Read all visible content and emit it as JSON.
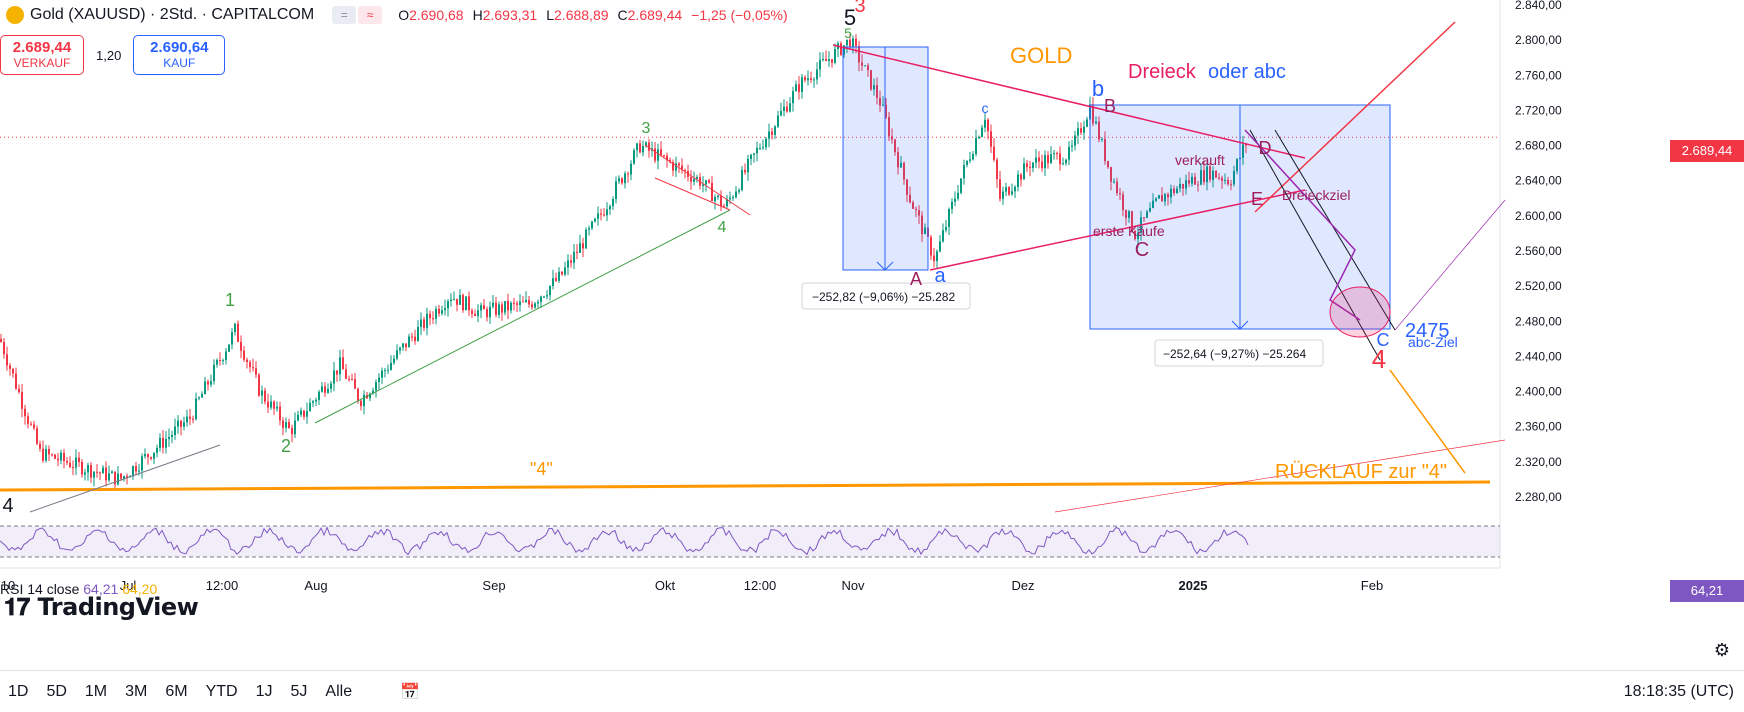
{
  "header": {
    "symbol": "Gold (XAUUSD) · 2Std. · CAPITALCOM",
    "chip1": "=",
    "chip2": "≈",
    "ohlc": [
      {
        "k": "O",
        "v": "2.690,68"
      },
      {
        "k": "H",
        "v": "2.693,31"
      },
      {
        "k": "L",
        "v": "2.688,89"
      },
      {
        "k": "C",
        "v": "2.689,44"
      },
      {
        "k": "",
        "v": "−1,25 (−0,05%)"
      }
    ]
  },
  "trade": {
    "sell_price": "2.689,44",
    "sell_label": "VERKAUF",
    "spread": "1,20",
    "buy_price": "2.690,64",
    "buy_label": "KAUF"
  },
  "colors": {
    "up": "#089981",
    "down": "#f23645",
    "blue": "#2962ff",
    "orange": "#ff9800",
    "rsi": "#7e57c2",
    "green": "#43a047",
    "purple": "#9c27b0"
  },
  "chart_data": {
    "type": "candlestick",
    "title": "Gold (XAUUSD) · 2Std. · CAPITALCOM",
    "y_axis_ticks": [
      "2.840,00",
      "2.800,00",
      "2.760,00",
      "2.720,00",
      "2.680,00",
      "2.640,00",
      "2.600,00",
      "2.560,00",
      "2.520,00",
      "2.480,00",
      "2.440,00",
      "2.400,00",
      "2.360,00",
      "2.320,00",
      "2.280,00"
    ],
    "ylim": [
      2270,
      2845
    ],
    "x_axis_ticks": [
      "10",
      "Jul",
      "12:00",
      "Aug",
      "Sep",
      "Okt",
      "12:00",
      "Nov",
      "Dez",
      "2025",
      "Feb"
    ],
    "current_price": "2.689,44",
    "price_path_approx": [
      [
        0,
        2460
      ],
      [
        40,
        2330
      ],
      [
        120,
        2300
      ],
      [
        190,
        2370
      ],
      [
        235,
        2470
      ],
      [
        260,
        2400
      ],
      [
        290,
        2355
      ],
      [
        340,
        2430
      ],
      [
        360,
        2390
      ],
      [
        410,
        2460
      ],
      [
        450,
        2510
      ],
      [
        480,
        2490
      ],
      [
        530,
        2500
      ],
      [
        560,
        2530
      ],
      [
        600,
        2600
      ],
      [
        640,
        2680
      ],
      [
        700,
        2640
      ],
      [
        725,
        2610
      ],
      [
        760,
        2680
      ],
      [
        800,
        2750
      ],
      [
        850,
        2800
      ],
      [
        880,
        2730
      ],
      [
        910,
        2620
      ],
      [
        935,
        2550
      ],
      [
        960,
        2640
      ],
      [
        985,
        2715
      ],
      [
        1000,
        2620
      ],
      [
        1030,
        2660
      ],
      [
        1070,
        2670
      ],
      [
        1090,
        2725
      ],
      [
        1110,
        2650
      ],
      [
        1135,
        2580
      ],
      [
        1160,
        2620
      ],
      [
        1190,
        2640
      ],
      [
        1210,
        2650
      ],
      [
        1230,
        2640
      ],
      [
        1248,
        2689
      ]
    ],
    "annotations": {
      "title_gold": "GOLD",
      "dreieck": "Dreieck",
      "oder_abc": "oder abc",
      "dreieckziel": "Dreieckziel",
      "verkauft": "verkauft",
      "erste_kaeufe": "erste Käufe",
      "target": "2475",
      "abc_ziel": "abc-Ziel",
      "ruecklauf": "RÜCKLAUF zur \"4\"",
      "four_quoted": "\"4\"",
      "measure1": "−252,82 (−9,06%) −25.282",
      "measure2": "−252,64 (−9,27%) −25.264",
      "wave_labels": [
        {
          "t": "5",
          "c": "#131722"
        },
        {
          "t": "3",
          "c": "#f23645"
        },
        {
          "t": "5",
          "c": "#43a047"
        },
        {
          "t": "3",
          "c": "#43a047"
        },
        {
          "t": "4",
          "c": "#43a047"
        },
        {
          "t": "1",
          "c": "#43a047"
        },
        {
          "t": "2",
          "c": "#43a047"
        },
        {
          "t": "4",
          "c": "#131722"
        },
        {
          "t": "b",
          "c": "#2962ff"
        },
        {
          "t": "B",
          "c": "#9c1e5e"
        },
        {
          "t": "a",
          "c": "#2962ff"
        },
        {
          "t": "A",
          "c": "#9c1e5e"
        },
        {
          "t": "C",
          "c": "#9c1e5e"
        },
        {
          "t": "D",
          "c": "#9c1e5e"
        },
        {
          "t": "E",
          "c": "#9c1e5e"
        },
        {
          "t": "c",
          "c": "#2962ff"
        },
        {
          "t": "C",
          "c": "#2962ff"
        },
        {
          "t": "4",
          "c": "#f23645"
        }
      ]
    },
    "rsi": {
      "label": "RSI 14 close",
      "value": "64,21",
      "value2": "64,20",
      "upper": "70,00",
      "lower": "30,00"
    }
  },
  "bottombar": {
    "timeframes": [
      "1D",
      "5D",
      "1M",
      "3M",
      "6M",
      "YTD",
      "1J",
      "5J",
      "Alle"
    ],
    "time": "18:18:35 (UTC)"
  },
  "branding": "TradingView"
}
